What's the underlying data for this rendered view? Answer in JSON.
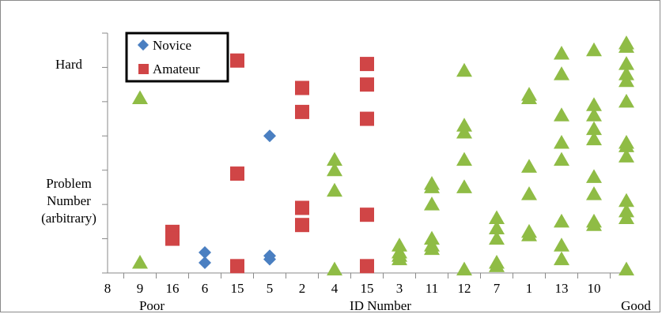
{
  "chart_data": {
    "type": "scatter",
    "x_categories": [
      "8",
      "9",
      "16",
      "6",
      "15",
      "5",
      "2",
      "4",
      "15",
      "3",
      "11",
      "12",
      "7",
      "1",
      "13",
      "10"
    ],
    "x_end_labels": {
      "left": "Poor",
      "right": "Good"
    },
    "xlabel": "ID Number",
    "ylabel_lines": [
      "Problem",
      "Number",
      "(arbitrary)"
    ],
    "y_annotation": "Hard",
    "ylim": [
      0,
      7
    ],
    "grid": false,
    "legend_position": "top-left",
    "legend": [
      {
        "name": "Novice",
        "marker": "diamond",
        "color": "#4a7fc1"
      },
      {
        "name": "Amateur",
        "marker": "square",
        "color": "#d04546"
      }
    ],
    "series": [
      {
        "name": "Novice",
        "marker": "diamond",
        "color": "#4a7fc1",
        "points": [
          {
            "x": 3,
            "y": 0.6
          },
          {
            "x": 3,
            "y": 0.3
          },
          {
            "x": 5,
            "y": 4.0
          },
          {
            "x": 5,
            "y": 0.5
          },
          {
            "x": 5,
            "y": 0.4
          }
        ]
      },
      {
        "name": "Amateur",
        "marker": "square",
        "color": "#d04546",
        "points": [
          {
            "x": 2,
            "y": 1.2
          },
          {
            "x": 2,
            "y": 1.0
          },
          {
            "x": 4,
            "y": 6.2
          },
          {
            "x": 4,
            "y": 2.9
          },
          {
            "x": 4,
            "y": 0.2
          },
          {
            "x": 6,
            "y": 5.4
          },
          {
            "x": 6,
            "y": 4.7
          },
          {
            "x": 6,
            "y": 1.9
          },
          {
            "x": 6,
            "y": 1.4
          },
          {
            "x": 8,
            "y": 6.1
          },
          {
            "x": 8,
            "y": 5.5
          },
          {
            "x": 8,
            "y": 4.5
          },
          {
            "x": 8,
            "y": 1.7
          },
          {
            "x": 8,
            "y": 0.2
          }
        ]
      },
      {
        "name": "",
        "marker": "triangle",
        "color": "#8fbc45",
        "points": [
          {
            "x": 1,
            "y": 5.1
          },
          {
            "x": 1,
            "y": 0.3
          },
          {
            "x": 7,
            "y": 3.3
          },
          {
            "x": 7,
            "y": 3.0
          },
          {
            "x": 7,
            "y": 2.4
          },
          {
            "x": 7,
            "y": 0.1
          },
          {
            "x": 9,
            "y": 0.8
          },
          {
            "x": 9,
            "y": 0.6
          },
          {
            "x": 9,
            "y": 0.5
          },
          {
            "x": 9,
            "y": 0.4
          },
          {
            "x": 10,
            "y": 2.6
          },
          {
            "x": 10,
            "y": 2.5
          },
          {
            "x": 10,
            "y": 2.0
          },
          {
            "x": 10,
            "y": 1.0
          },
          {
            "x": 10,
            "y": 0.8
          },
          {
            "x": 10,
            "y": 0.7
          },
          {
            "x": 11,
            "y": 5.9
          },
          {
            "x": 11,
            "y": 4.3
          },
          {
            "x": 11,
            "y": 4.1
          },
          {
            "x": 11,
            "y": 3.3
          },
          {
            "x": 11,
            "y": 2.5
          },
          {
            "x": 11,
            "y": 0.1
          },
          {
            "x": 12,
            "y": 1.6
          },
          {
            "x": 12,
            "y": 1.3
          },
          {
            "x": 12,
            "y": 1.0
          },
          {
            "x": 12,
            "y": 0.3
          },
          {
            "x": 12,
            "y": 0.2
          },
          {
            "x": 13,
            "y": 5.2
          },
          {
            "x": 13,
            "y": 5.1
          },
          {
            "x": 13,
            "y": 3.1
          },
          {
            "x": 13,
            "y": 2.3
          },
          {
            "x": 13,
            "y": 1.2
          },
          {
            "x": 13,
            "y": 1.1
          },
          {
            "x": 14,
            "y": 6.4
          },
          {
            "x": 14,
            "y": 5.8
          },
          {
            "x": 14,
            "y": 4.6
          },
          {
            "x": 14,
            "y": 3.8
          },
          {
            "x": 14,
            "y": 3.3
          },
          {
            "x": 14,
            "y": 1.5
          },
          {
            "x": 14,
            "y": 0.8
          },
          {
            "x": 14,
            "y": 0.4
          },
          {
            "x": 15,
            "y": 6.5
          },
          {
            "x": 15,
            "y": 4.9
          },
          {
            "x": 15,
            "y": 4.6
          },
          {
            "x": 15,
            "y": 4.2
          },
          {
            "x": 15,
            "y": 3.9
          },
          {
            "x": 15,
            "y": 2.8
          },
          {
            "x": 15,
            "y": 2.3
          },
          {
            "x": 15,
            "y": 1.5
          },
          {
            "x": 15,
            "y": 1.4
          },
          {
            "x": 16,
            "y": 6.7
          },
          {
            "x": 16,
            "y": 6.6
          },
          {
            "x": 16,
            "y": 6.1
          },
          {
            "x": 16,
            "y": 5.8
          },
          {
            "x": 16,
            "y": 5.6
          },
          {
            "x": 16,
            "y": 5.0
          },
          {
            "x": 16,
            "y": 3.8
          },
          {
            "x": 16,
            "y": 3.7
          },
          {
            "x": 16,
            "y": 3.4
          },
          {
            "x": 16,
            "y": 2.1
          },
          {
            "x": 16,
            "y": 1.8
          },
          {
            "x": 16,
            "y": 1.6
          },
          {
            "x": 16,
            "y": 0.1
          }
        ]
      }
    ]
  }
}
